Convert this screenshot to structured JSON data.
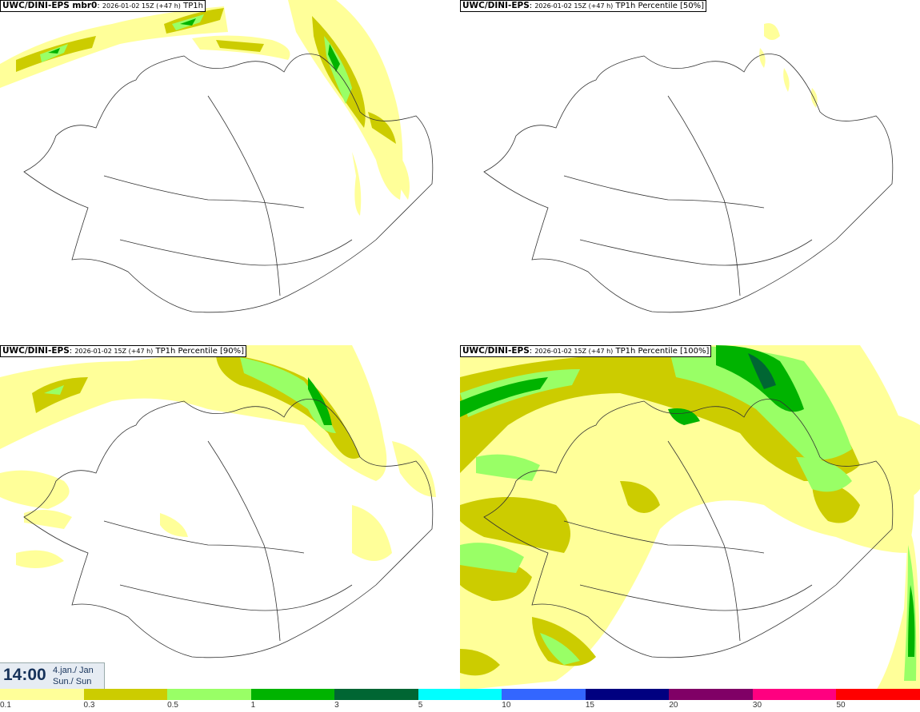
{
  "panels": [
    {
      "model": "UWC/DINI-EPS mbr0",
      "run": "2026-01-02 15Z (+47 h)",
      "field": "TP1h"
    },
    {
      "model": "UWC/DINI-EPS",
      "run": "2026-01-02 15Z (+47 h)",
      "field": "TP1h Percentile [50%]"
    },
    {
      "model": "UWC/DINI-EPS",
      "run": "2026-01-02 15Z (+47 h)",
      "field": "TP1h Percentile [90%]"
    },
    {
      "model": "UWC/DINI-EPS",
      "run": "2026-01-02 15Z (+47 h)",
      "field": "TP1h Percentile [100%]"
    }
  ],
  "valid_time": {
    "time": "14:00",
    "date_line1": "4.jan./ Jan",
    "date_line2": "Sun./ Sun"
  },
  "colorbar": {
    "colors": [
      "#ffff99",
      "#cccc00",
      "#99ff66",
      "#00b300",
      "#006633",
      "#00ffff",
      "#3366ff",
      "#000080",
      "#800066",
      "#ff0080",
      "#ff0000"
    ],
    "labels": [
      "0.1",
      "0.3",
      "0.5",
      "1",
      "3",
      "5",
      "10",
      "15",
      "20",
      "30",
      "50"
    ]
  }
}
